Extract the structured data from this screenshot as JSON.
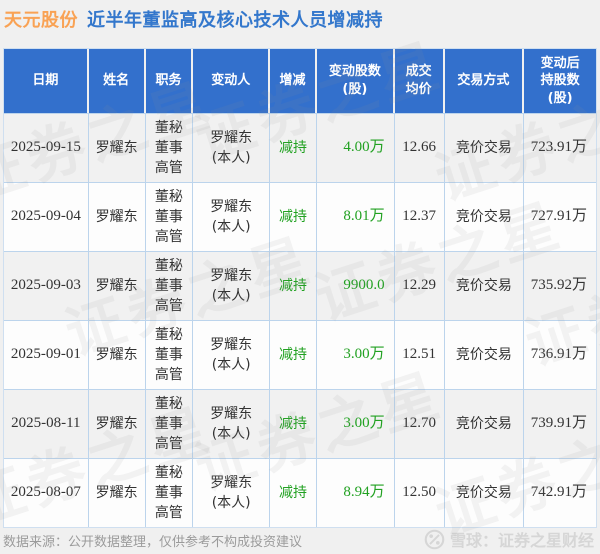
{
  "title": {
    "stock": "天元股份",
    "subtitle": "近半年董监高及核心技术人员增减持"
  },
  "colors": {
    "header_bg": "#3370cc",
    "title_orange": "#f9a254",
    "title_blue": "#3377cc",
    "decrease_green": "#21a121",
    "row_odd_bg": "#f1f1f1",
    "row_even_bg": "#fdfdfd",
    "grid_border": "#bcd4ec"
  },
  "table": {
    "headers": {
      "date": "日期",
      "name": "姓名",
      "position": "职务",
      "changer": "变动人",
      "direction": "增减",
      "shares": "变动股数\n(股)",
      "price": "成交\n均价",
      "method": "交易方式",
      "after": "变动后\n持股数\n(股)"
    },
    "rows": [
      {
        "date": "2025-09-15",
        "name": "罗耀东",
        "position": "董秘\n董事\n高管",
        "changer": "罗耀东\n(本人)",
        "direction": "减持",
        "shares": "4.00万",
        "price": "12.66",
        "method": "竞价交易",
        "after": "723.91万"
      },
      {
        "date": "2025-09-04",
        "name": "罗耀东",
        "position": "董秘\n董事\n高管",
        "changer": "罗耀东\n(本人)",
        "direction": "减持",
        "shares": "8.01万",
        "price": "12.37",
        "method": "竞价交易",
        "after": "727.91万"
      },
      {
        "date": "2025-09-03",
        "name": "罗耀东",
        "position": "董秘\n董事\n高管",
        "changer": "罗耀东\n(本人)",
        "direction": "减持",
        "shares": "9900.0",
        "price": "12.29",
        "method": "竞价交易",
        "after": "735.92万"
      },
      {
        "date": "2025-09-01",
        "name": "罗耀东",
        "position": "董秘\n董事\n高管",
        "changer": "罗耀东\n(本人)",
        "direction": "减持",
        "shares": "3.00万",
        "price": "12.51",
        "method": "竞价交易",
        "after": "736.91万"
      },
      {
        "date": "2025-08-11",
        "name": "罗耀东",
        "position": "董秘\n董事\n高管",
        "changer": "罗耀东\n(本人)",
        "direction": "减持",
        "shares": "3.00万",
        "price": "12.70",
        "method": "竞价交易",
        "after": "739.91万"
      },
      {
        "date": "2025-08-07",
        "name": "罗耀东",
        "position": "董秘\n董事\n高管",
        "changer": "罗耀东\n(本人)",
        "direction": "减持",
        "shares": "8.94万",
        "price": "12.50",
        "method": "竞价交易",
        "after": "742.91万"
      }
    ]
  },
  "watermark_text": "证券之星",
  "footer": {
    "source_note": "数据来源：公开数据整理，仅供参考不构成投资建议",
    "brand": "雪球：证券之星财经"
  }
}
